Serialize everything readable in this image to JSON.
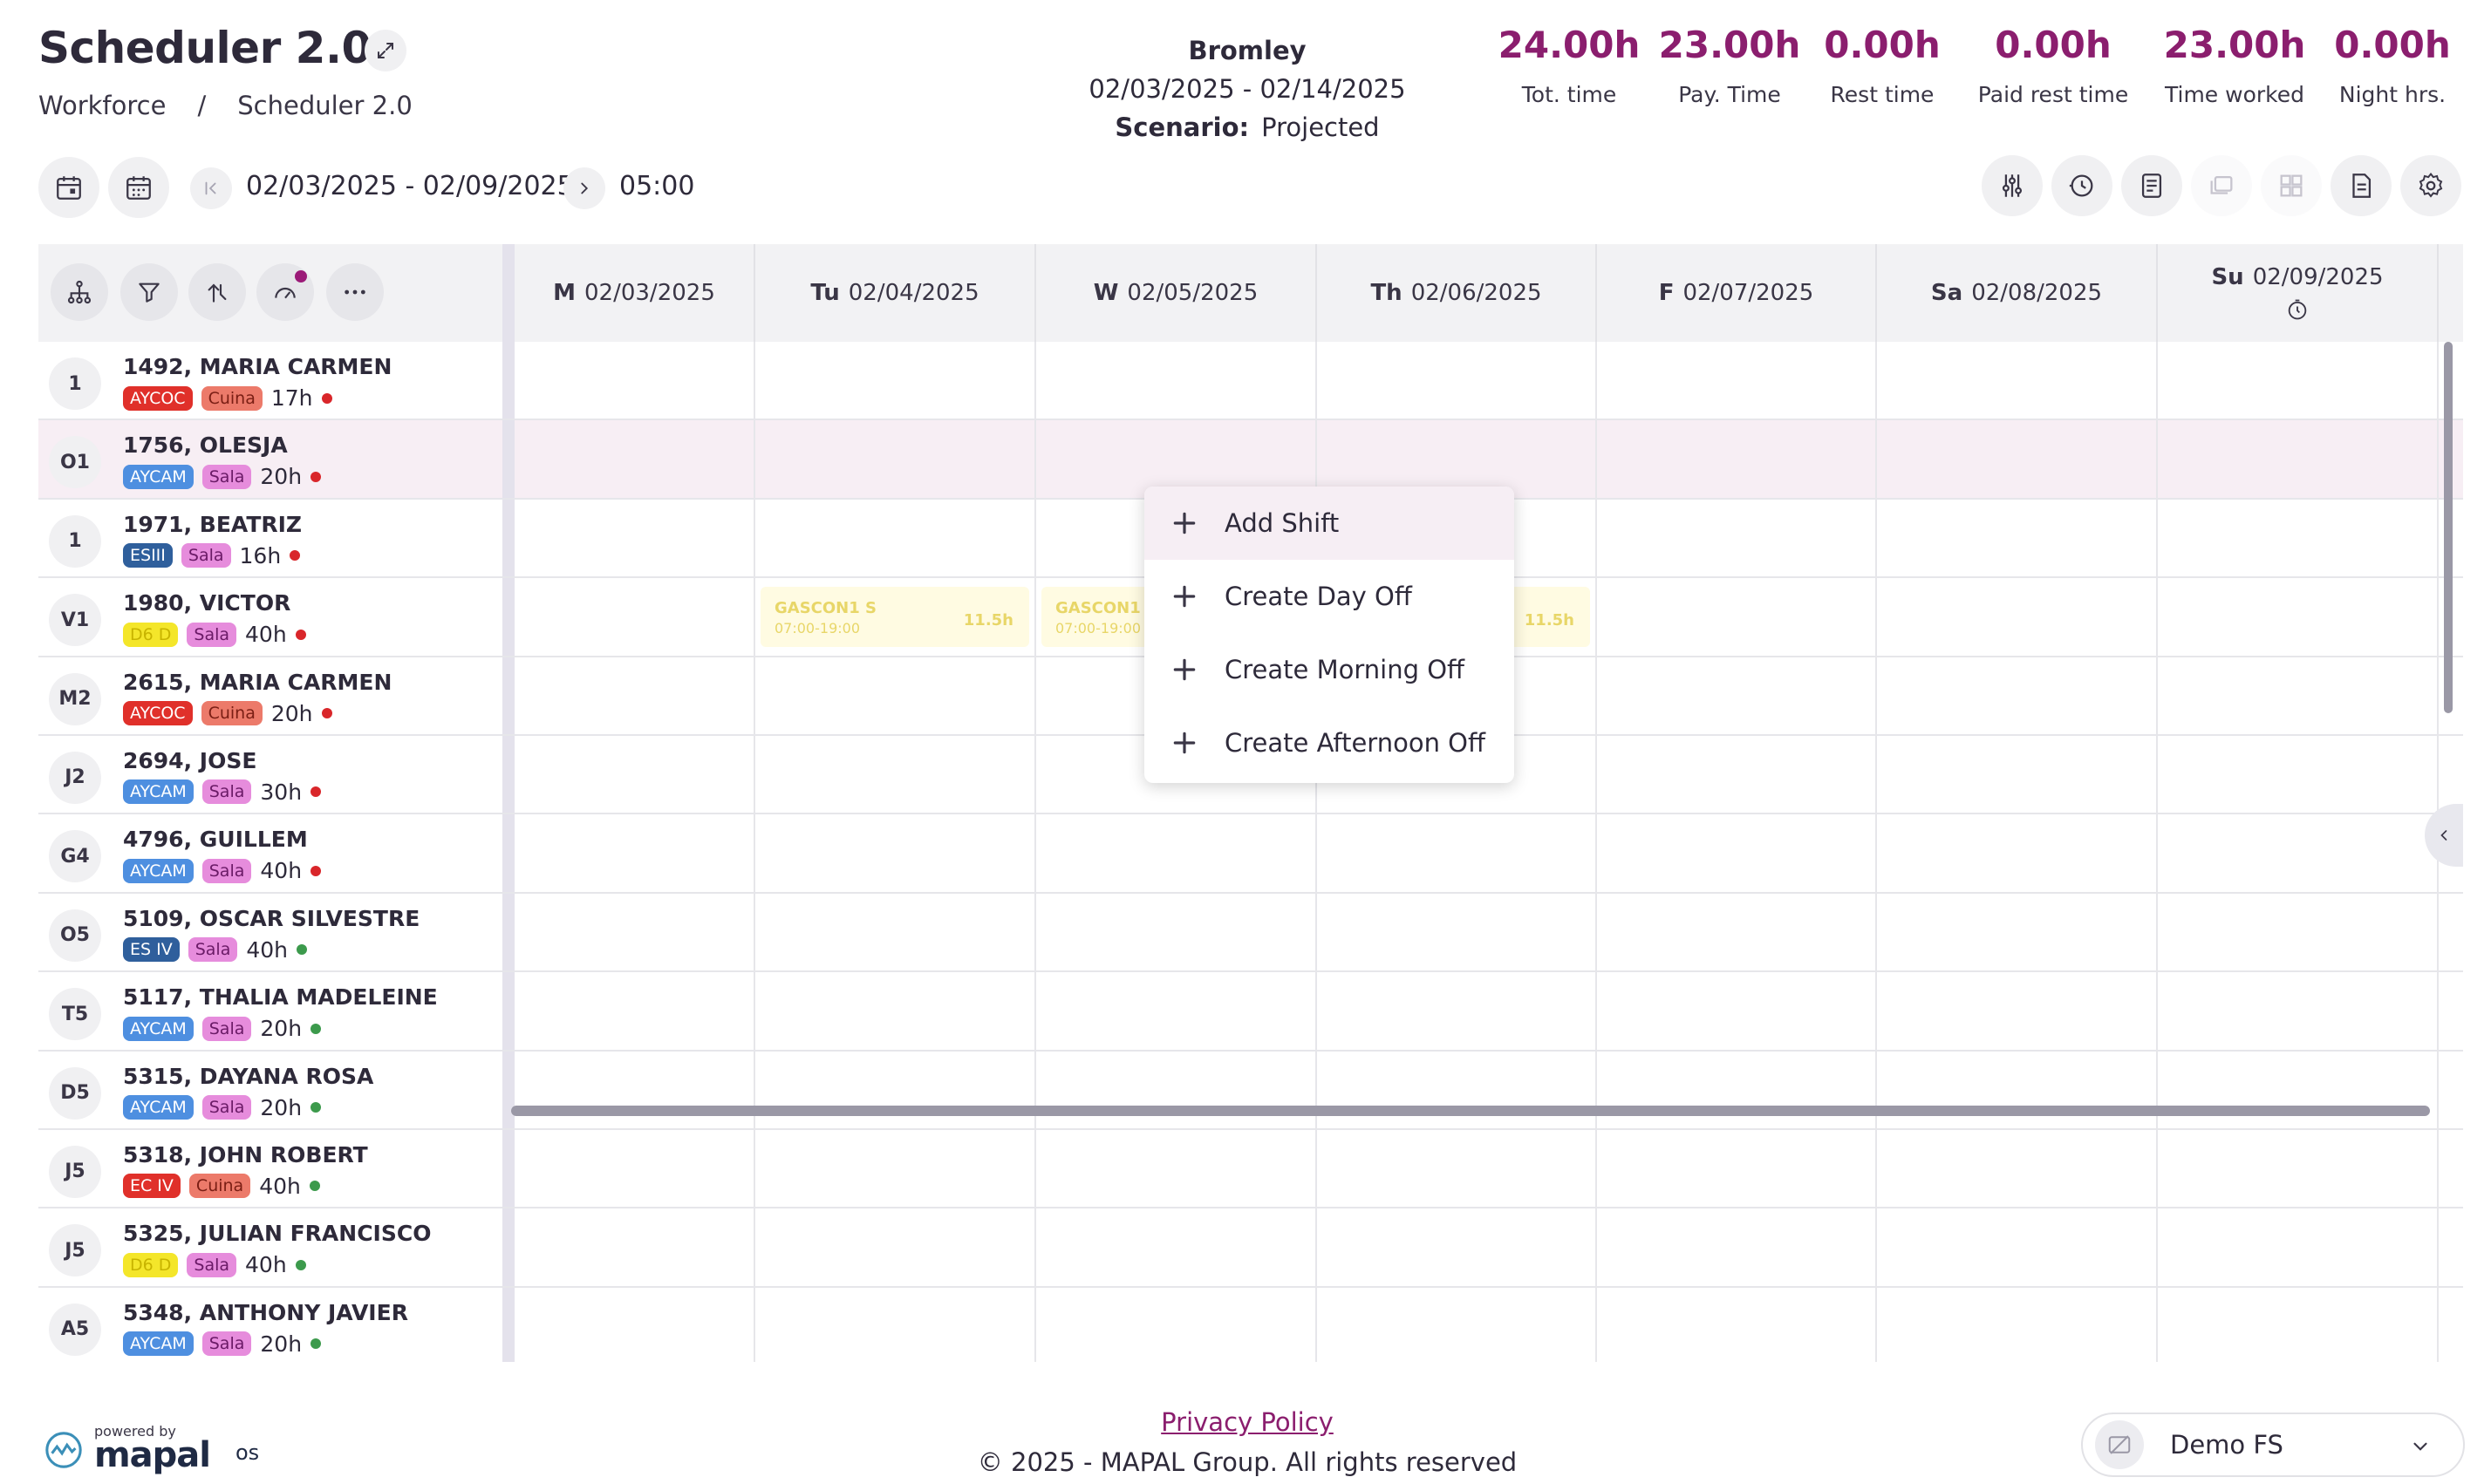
{
  "header": {
    "title": "Scheduler 2.0",
    "breadcrumb": [
      "Workforce",
      "/",
      "Scheduler 2.0"
    ],
    "location": "Bromley",
    "period": "02/03/2025 - 02/14/2025",
    "scenario_label": "Scenario:",
    "scenario_value": "Projected"
  },
  "stats": [
    {
      "value": "24.00h",
      "label": "Tot. time"
    },
    {
      "value": "23.00h",
      "label": "Pay. Time"
    },
    {
      "value": "0.00h",
      "label": "Rest time"
    },
    {
      "value": "0.00h",
      "label": "Paid rest time"
    },
    {
      "value": "23.00h",
      "label": "Time worked"
    },
    {
      "value": "0.00h",
      "label": "Night hrs."
    }
  ],
  "toolbar": {
    "week_range": "02/03/2025 - 02/09/2025",
    "time": "05:00"
  },
  "days": [
    {
      "abbr": "M",
      "date": "02/03/2025"
    },
    {
      "abbr": "Tu",
      "date": "02/04/2025"
    },
    {
      "abbr": "W",
      "date": "02/05/2025"
    },
    {
      "abbr": "Th",
      "date": "02/06/2025"
    },
    {
      "abbr": "F",
      "date": "02/07/2025"
    },
    {
      "abbr": "Sa",
      "date": "02/08/2025"
    },
    {
      "abbr": "Su",
      "date": "02/09/2025"
    }
  ],
  "colors": {
    "accent": "#8b1e6e",
    "AYCOC": "#e0302a",
    "AYCAM": "#4e8fe0",
    "ESIII": "#2f5f9c",
    "ES IV": "#2f5f9c",
    "EC IV": "#e0302a",
    "D6 D": "#f4e62a",
    "Cuina": "#ec7a6a",
    "Sala": "#e68cdc",
    "dot_red": "#d9262a",
    "dot_green": "#3c9a4c"
  },
  "employees": [
    {
      "initials": "1",
      "name": "1492, MARIA CARMEN",
      "tag1": "AYCOC",
      "tag2": "Cuina",
      "hours": "17h",
      "status": "red"
    },
    {
      "initials": "O1",
      "name": "1756, OLESJA",
      "tag1": "AYCAM",
      "tag2": "Sala",
      "hours": "20h",
      "status": "red"
    },
    {
      "initials": "1",
      "name": "1971, BEATRIZ",
      "tag1": "ESIII",
      "tag2": "Sala",
      "hours": "16h",
      "status": "red"
    },
    {
      "initials": "V1",
      "name": "1980, VICTOR",
      "tag1": "D6 D",
      "tag2": "Sala",
      "hours": "40h",
      "status": "red"
    },
    {
      "initials": "M2",
      "name": "2615, MARIA CARMEN",
      "tag1": "AYCOC",
      "tag2": "Cuina",
      "hours": "20h",
      "status": "red"
    },
    {
      "initials": "J2",
      "name": "2694, JOSE",
      "tag1": "AYCAM",
      "tag2": "Sala",
      "hours": "30h",
      "status": "red"
    },
    {
      "initials": "G4",
      "name": "4796, GUILLEM",
      "tag1": "AYCAM",
      "tag2": "Sala",
      "hours": "40h",
      "status": "red"
    },
    {
      "initials": "O5",
      "name": "5109, OSCAR SILVESTRE",
      "tag1": "ES IV",
      "tag2": "Sala",
      "hours": "40h",
      "status": "green"
    },
    {
      "initials": "T5",
      "name": "5117, THALIA MADELEINE",
      "tag1": "AYCAM",
      "tag2": "Sala",
      "hours": "20h",
      "status": "green"
    },
    {
      "initials": "D5",
      "name": "5315, DAYANA ROSA",
      "tag1": "AYCAM",
      "tag2": "Sala",
      "hours": "20h",
      "status": "green"
    },
    {
      "initials": "J5",
      "name": "5318, JOHN ROBERT",
      "tag1": "EC IV",
      "tag2": "Cuina",
      "hours": "40h",
      "status": "green"
    },
    {
      "initials": "J5",
      "name": "5325, JULIAN FRANCISCO",
      "tag1": "D6 D",
      "tag2": "Sala",
      "hours": "40h",
      "status": "green"
    },
    {
      "initials": "A5",
      "name": "5348, ANTHONY JAVIER",
      "tag1": "AYCAM",
      "tag2": "Sala",
      "hours": "20h",
      "status": "green"
    }
  ],
  "shifts": [
    {
      "name": "GASCON1 S",
      "time": "07:00-19:00",
      "hours": "11.5h"
    },
    {
      "name": "GASCON1",
      "time": "07:00-19:00",
      "hours": ""
    },
    {
      "name": "",
      "time": "",
      "hours": "11.5h"
    }
  ],
  "context_menu": [
    "Add Shift",
    "Create Day Off",
    "Create Morning Off",
    "Create Afternoon Off"
  ],
  "footer": {
    "powered_by": "powered by",
    "logo": "mapal",
    "logo_suffix": "os",
    "privacy": "Privacy Policy",
    "copyright": "© 2025 - MAPAL Group. All rights reserved",
    "org": "Demo FS"
  }
}
